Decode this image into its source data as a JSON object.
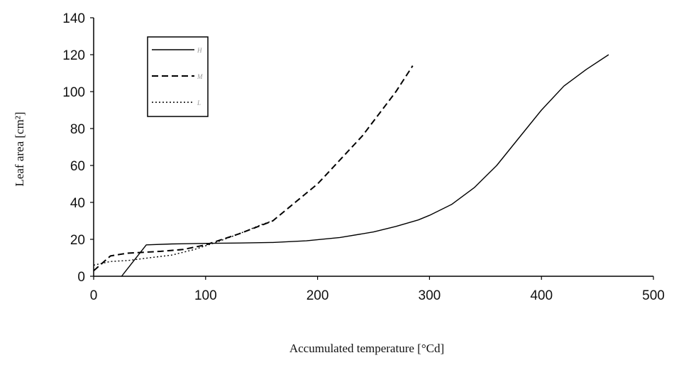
{
  "chart_data": {
    "type": "line",
    "xlabel": "Accumulated temperature [°Cd]",
    "ylabel": "Leaf area [cm²]",
    "xlim": [
      0,
      500
    ],
    "ylim": [
      0,
      140
    ],
    "xticks": [
      0,
      100,
      200,
      300,
      400,
      500
    ],
    "yticks": [
      0,
      20,
      40,
      60,
      80,
      100,
      120,
      140
    ],
    "grid": false,
    "legend_position": "top-left",
    "series": [
      {
        "name": "H",
        "style": "solid",
        "color": "#000000",
        "x": [
          25,
          47,
          70,
          100,
          130,
          160,
          190,
          220,
          250,
          270,
          290,
          300,
          320,
          340,
          360,
          380,
          400,
          420,
          440,
          460
        ],
        "y": [
          0,
          17,
          17.5,
          17.8,
          18,
          18.3,
          19.2,
          21,
          24,
          27,
          30.5,
          33,
          39,
          48,
          60,
          75,
          90,
          103,
          112,
          120
        ]
      },
      {
        "name": "M",
        "style": "dashed",
        "color": "#000000",
        "x": [
          0,
          15,
          30,
          60,
          80,
          100,
          130,
          160,
          180,
          200,
          220,
          240,
          260,
          270,
          285
        ],
        "y": [
          3,
          11,
          12.5,
          13.5,
          14.5,
          17,
          23,
          30,
          40,
          50,
          63,
          76,
          92,
          100,
          114
        ]
      },
      {
        "name": "L",
        "style": "dotted",
        "color": "#000000",
        "x": [
          0,
          15,
          30,
          50,
          70,
          90,
          110,
          130,
          150,
          160
        ],
        "y": [
          6,
          8,
          8.5,
          10,
          11.5,
          14.5,
          18.5,
          23,
          28,
          30
        ]
      }
    ]
  }
}
